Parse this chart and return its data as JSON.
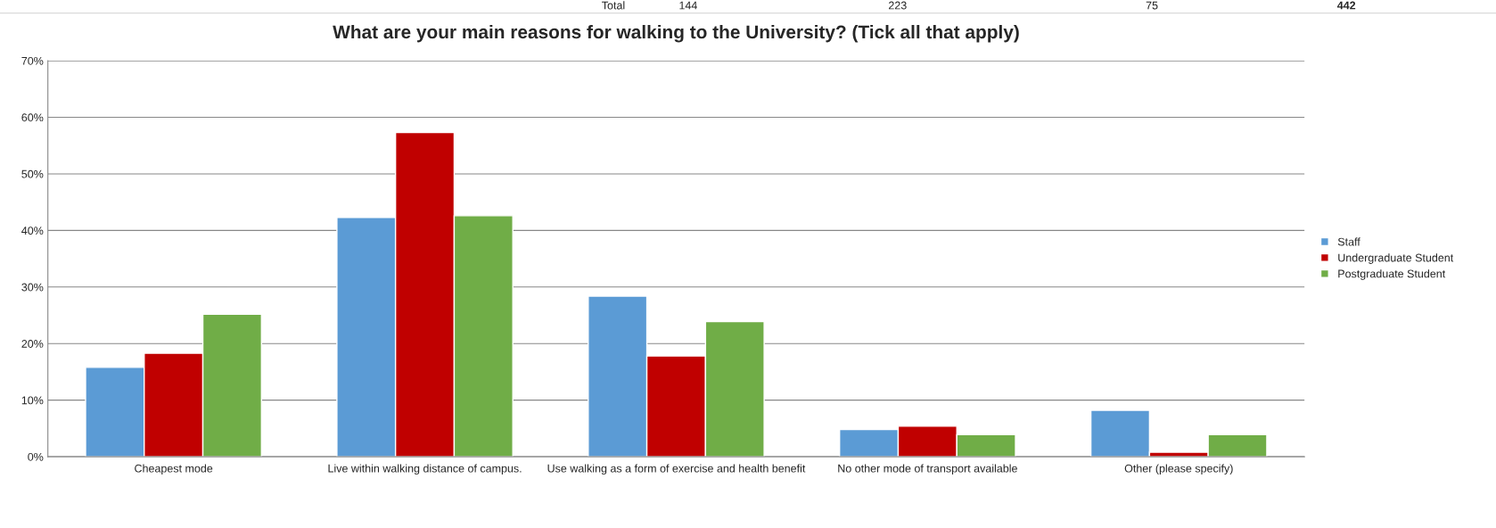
{
  "chart_data": {
    "type": "bar",
    "title": "What are your main reasons for walking to the University? (Tick all that apply)",
    "categories": [
      "Cheapest mode",
      "Live within walking distance of campus.",
      "Use walking as a form of exercise and health benefit",
      "No other mode of transport available",
      "Other (please specify)"
    ],
    "series": [
      {
        "name": "Staff",
        "color": "#5b9bd5",
        "values": [
          15.8,
          42.3,
          28.4,
          4.8,
          8.2
        ]
      },
      {
        "name": "Undergraduate Student",
        "color": "#c00000",
        "values": [
          18.3,
          57.3,
          17.8,
          5.4,
          0.8
        ]
      },
      {
        "name": "Postgraduate Student",
        "color": "#70ad47",
        "values": [
          25.2,
          42.6,
          23.9,
          3.9,
          3.9
        ]
      }
    ],
    "ylim": [
      0,
      70
    ],
    "yticks": [
      {
        "value": 0,
        "label": "0%"
      },
      {
        "value": 10,
        "label": "10%"
      },
      {
        "value": 20,
        "label": "20%"
      },
      {
        "value": 30,
        "label": "30%"
      },
      {
        "value": 40,
        "label": "40%"
      },
      {
        "value": 50,
        "label": "50%"
      },
      {
        "value": 60,
        "label": "60%"
      },
      {
        "value": 70,
        "label": "70%"
      }
    ],
    "grid": "y",
    "legend": "right",
    "annotations": [
      "Total",
      "144",
      "223",
      "75",
      "442"
    ]
  }
}
